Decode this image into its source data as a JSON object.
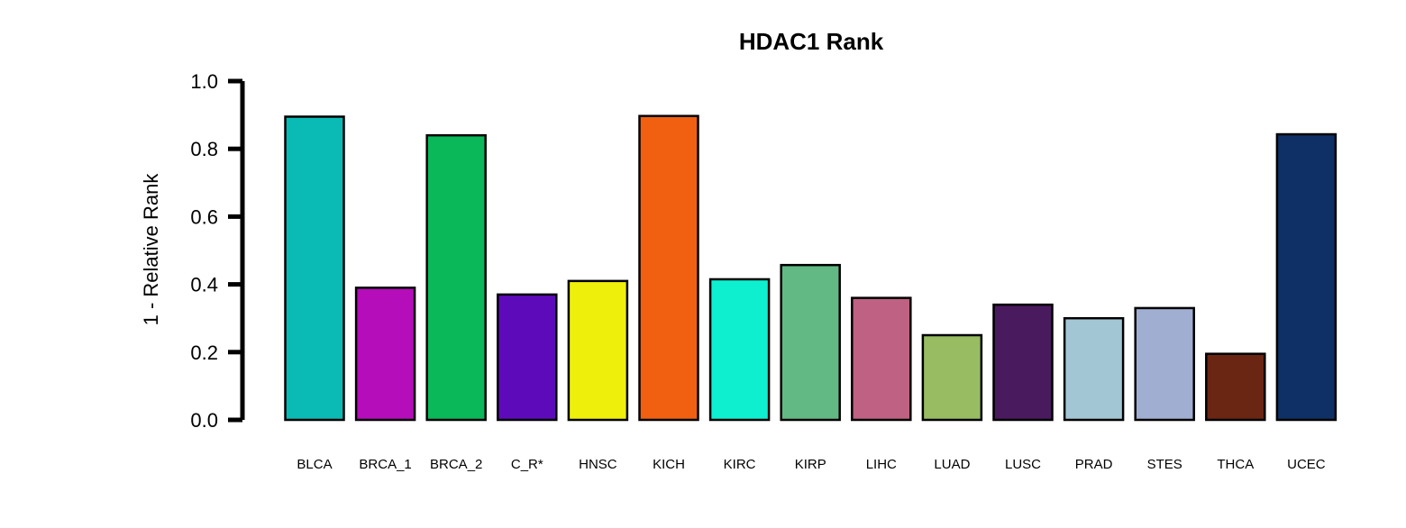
{
  "chart_data": {
    "type": "bar",
    "title": "HDAC1 Rank",
    "xlabel": "",
    "ylabel": "1 - Relative Rank",
    "ylim": [
      0,
      1.0
    ],
    "yticks": [
      "0.0",
      "0.2",
      "0.4",
      "0.6",
      "0.8",
      "1.0"
    ],
    "grid": false,
    "categories": [
      "BLCA",
      "BRCA_1",
      "BRCA_2",
      "C_R*",
      "HNSC",
      "KICH",
      "KIRC",
      "KIRP",
      "LIHC",
      "LUAD",
      "LUSC",
      "PRAD",
      "STES",
      "THCA",
      "UCEC"
    ],
    "values": [
      0.895,
      0.39,
      0.84,
      0.37,
      0.41,
      0.897,
      0.415,
      0.457,
      0.36,
      0.25,
      0.34,
      0.3,
      0.33,
      0.195,
      0.843
    ],
    "colors": [
      "#0ABAB5",
      "#B50DB9",
      "#0AB85A",
      "#5D0BBA",
      "#EFEF0C",
      "#F06010",
      "#0EEFD0",
      "#62B984",
      "#BE6182",
      "#98BC62",
      "#4A1A5E",
      "#A3C6D4",
      "#A0AED2",
      "#6A2613",
      "#0F3066"
    ]
  }
}
